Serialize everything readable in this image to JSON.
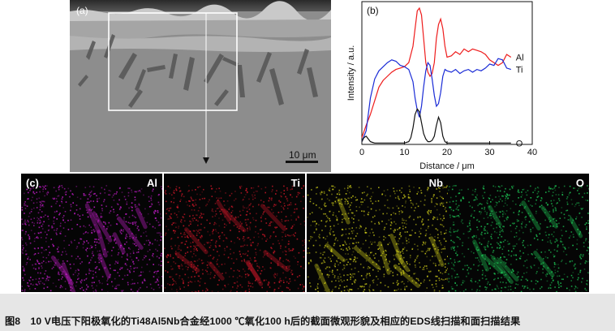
{
  "panel_a": {
    "label": "(a)",
    "scale_bar": "10 μm"
  },
  "panel_b": {
    "label": "(b)",
    "chart_data": {
      "type": "line",
      "xlabel": "Distance / μm",
      "ylabel": "Intensity / a.u.",
      "xlim": [
        0,
        40
      ],
      "xticks": [
        0,
        10,
        20,
        30,
        40
      ],
      "series": [
        {
          "name": "Al",
          "color": "#ee1c1c",
          "x": [
            0,
            1,
            2,
            3,
            4,
            5,
            6,
            7,
            8,
            9,
            10,
            11,
            12,
            12.5,
            13,
            13.5,
            14,
            14.5,
            15,
            15.5,
            16,
            16.5,
            17,
            17.5,
            18,
            18.5,
            19,
            19.5,
            20,
            21,
            22,
            23,
            24,
            25,
            26,
            27,
            28,
            29,
            30,
            31,
            32,
            33,
            34,
            35
          ],
          "y": [
            0.05,
            0.14,
            0.22,
            0.32,
            0.42,
            0.47,
            0.5,
            0.53,
            0.55,
            0.56,
            0.57,
            0.6,
            0.72,
            0.85,
            0.98,
            1.0,
            0.95,
            0.78,
            0.6,
            0.53,
            0.5,
            0.52,
            0.6,
            0.78,
            0.88,
            0.92,
            0.85,
            0.72,
            0.64,
            0.65,
            0.68,
            0.66,
            0.7,
            0.68,
            0.7,
            0.69,
            0.68,
            0.66,
            0.62,
            0.6,
            0.58,
            0.6,
            0.66,
            0.64
          ]
        },
        {
          "name": "Ti",
          "color": "#1a2bd6",
          "x": [
            0,
            1,
            2,
            3,
            4,
            5,
            6,
            7,
            8,
            9,
            10,
            11,
            12,
            12.5,
            13,
            13.5,
            14,
            14.5,
            15,
            15.5,
            16,
            16.5,
            17,
            17.5,
            18,
            18.5,
            19,
            19.5,
            20,
            21,
            22,
            23,
            24,
            25,
            26,
            27,
            28,
            29,
            30,
            31,
            32,
            33,
            34,
            35
          ],
          "y": [
            0.02,
            0.1,
            0.34,
            0.48,
            0.54,
            0.57,
            0.6,
            0.62,
            0.61,
            0.58,
            0.57,
            0.55,
            0.46,
            0.34,
            0.25,
            0.2,
            0.28,
            0.42,
            0.54,
            0.6,
            0.58,
            0.48,
            0.36,
            0.28,
            0.3,
            0.38,
            0.5,
            0.55,
            0.54,
            0.53,
            0.55,
            0.52,
            0.54,
            0.55,
            0.53,
            0.55,
            0.54,
            0.56,
            0.59,
            0.58,
            0.63,
            0.62,
            0.56,
            0.55
          ]
        },
        {
          "name": "O",
          "color": "#111111",
          "x": [
            0,
            0.5,
            1,
            1.5,
            2,
            2.5,
            3,
            4,
            5,
            6,
            8,
            10,
            11,
            11.5,
            12,
            12.5,
            13,
            13.5,
            14,
            14.5,
            15,
            15.5,
            16,
            16.5,
            17,
            17.5,
            18,
            18.5,
            19,
            19.5,
            20,
            21,
            22,
            24,
            26,
            28,
            30,
            32,
            34,
            35
          ],
          "y": [
            0.02,
            0.05,
            0.06,
            0.04,
            0.02,
            0.015,
            0.01,
            0.01,
            0.01,
            0.01,
            0.01,
            0.01,
            0.02,
            0.05,
            0.12,
            0.22,
            0.26,
            0.24,
            0.16,
            0.08,
            0.04,
            0.02,
            0.02,
            0.03,
            0.06,
            0.14,
            0.2,
            0.16,
            0.06,
            0.02,
            0.01,
            0.01,
            0.01,
            0.01,
            0.01,
            0.01,
            0.01,
            0.01,
            0.01,
            0.01
          ]
        }
      ]
    }
  },
  "maps": {
    "label": "(c)",
    "items": [
      {
        "element": "Al",
        "color": "#d21fd8"
      },
      {
        "element": "Ti",
        "color": "#d8182a"
      },
      {
        "element": "Nb",
        "color": "#d8d61a"
      },
      {
        "element": "O",
        "color": "#1fd25a"
      }
    ]
  },
  "caption": "图8　10 V电压下阳极氧化的Ti48Al5Nb合金经1000 ℃氧化100 h后的截面微观形貌及相应的EDS线扫描和面扫描结果"
}
